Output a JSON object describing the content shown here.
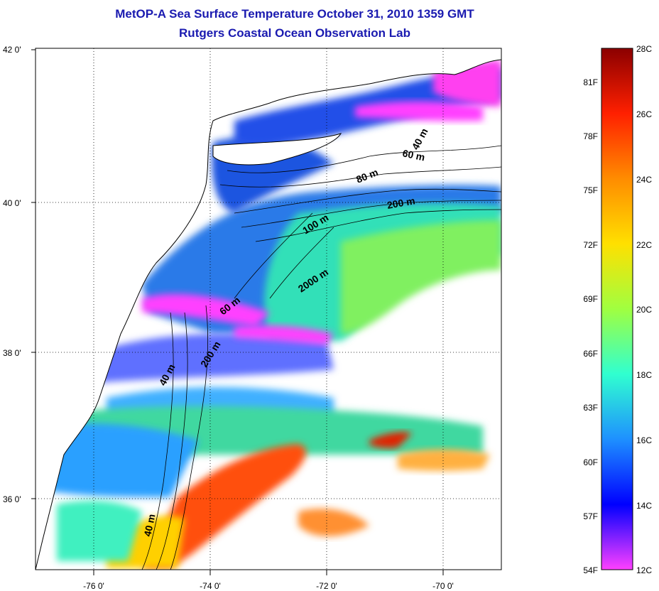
{
  "title": "MetOP-A Sea Surface Temperature October 31, 2010 1359 GMT",
  "subtitle": "Rutgers Coastal Ocean Observation Lab",
  "map": {
    "lat_labels": [
      "42 0'",
      "40 0'",
      "38 0'",
      "36 0'"
    ],
    "lon_labels": [
      "-76 0'",
      "-74 0'",
      "-72 0'",
      "-70 0'"
    ],
    "contour_labels": [
      "40 m",
      "60 m",
      "80 m",
      "200 m",
      "100 m",
      "2000 m",
      "60 m",
      "40 m",
      "200 m",
      "40 m"
    ]
  },
  "colorbar": {
    "fahrenheit_labels": [
      "81F",
      "78F",
      "75F",
      "72F",
      "69F",
      "66F",
      "63F",
      "60F",
      "57F",
      "54F"
    ],
    "celsius_labels": [
      "28C",
      "26C",
      "24C",
      "22C",
      "20C",
      "18C",
      "16C",
      "14C",
      "12C"
    ],
    "colors": [
      "#8b0000",
      "#ff2000",
      "#ff8c00",
      "#ffe000",
      "#a0ff40",
      "#30ffd0",
      "#1e90ff",
      "#0000ff",
      "#ff40ff"
    ]
  }
}
